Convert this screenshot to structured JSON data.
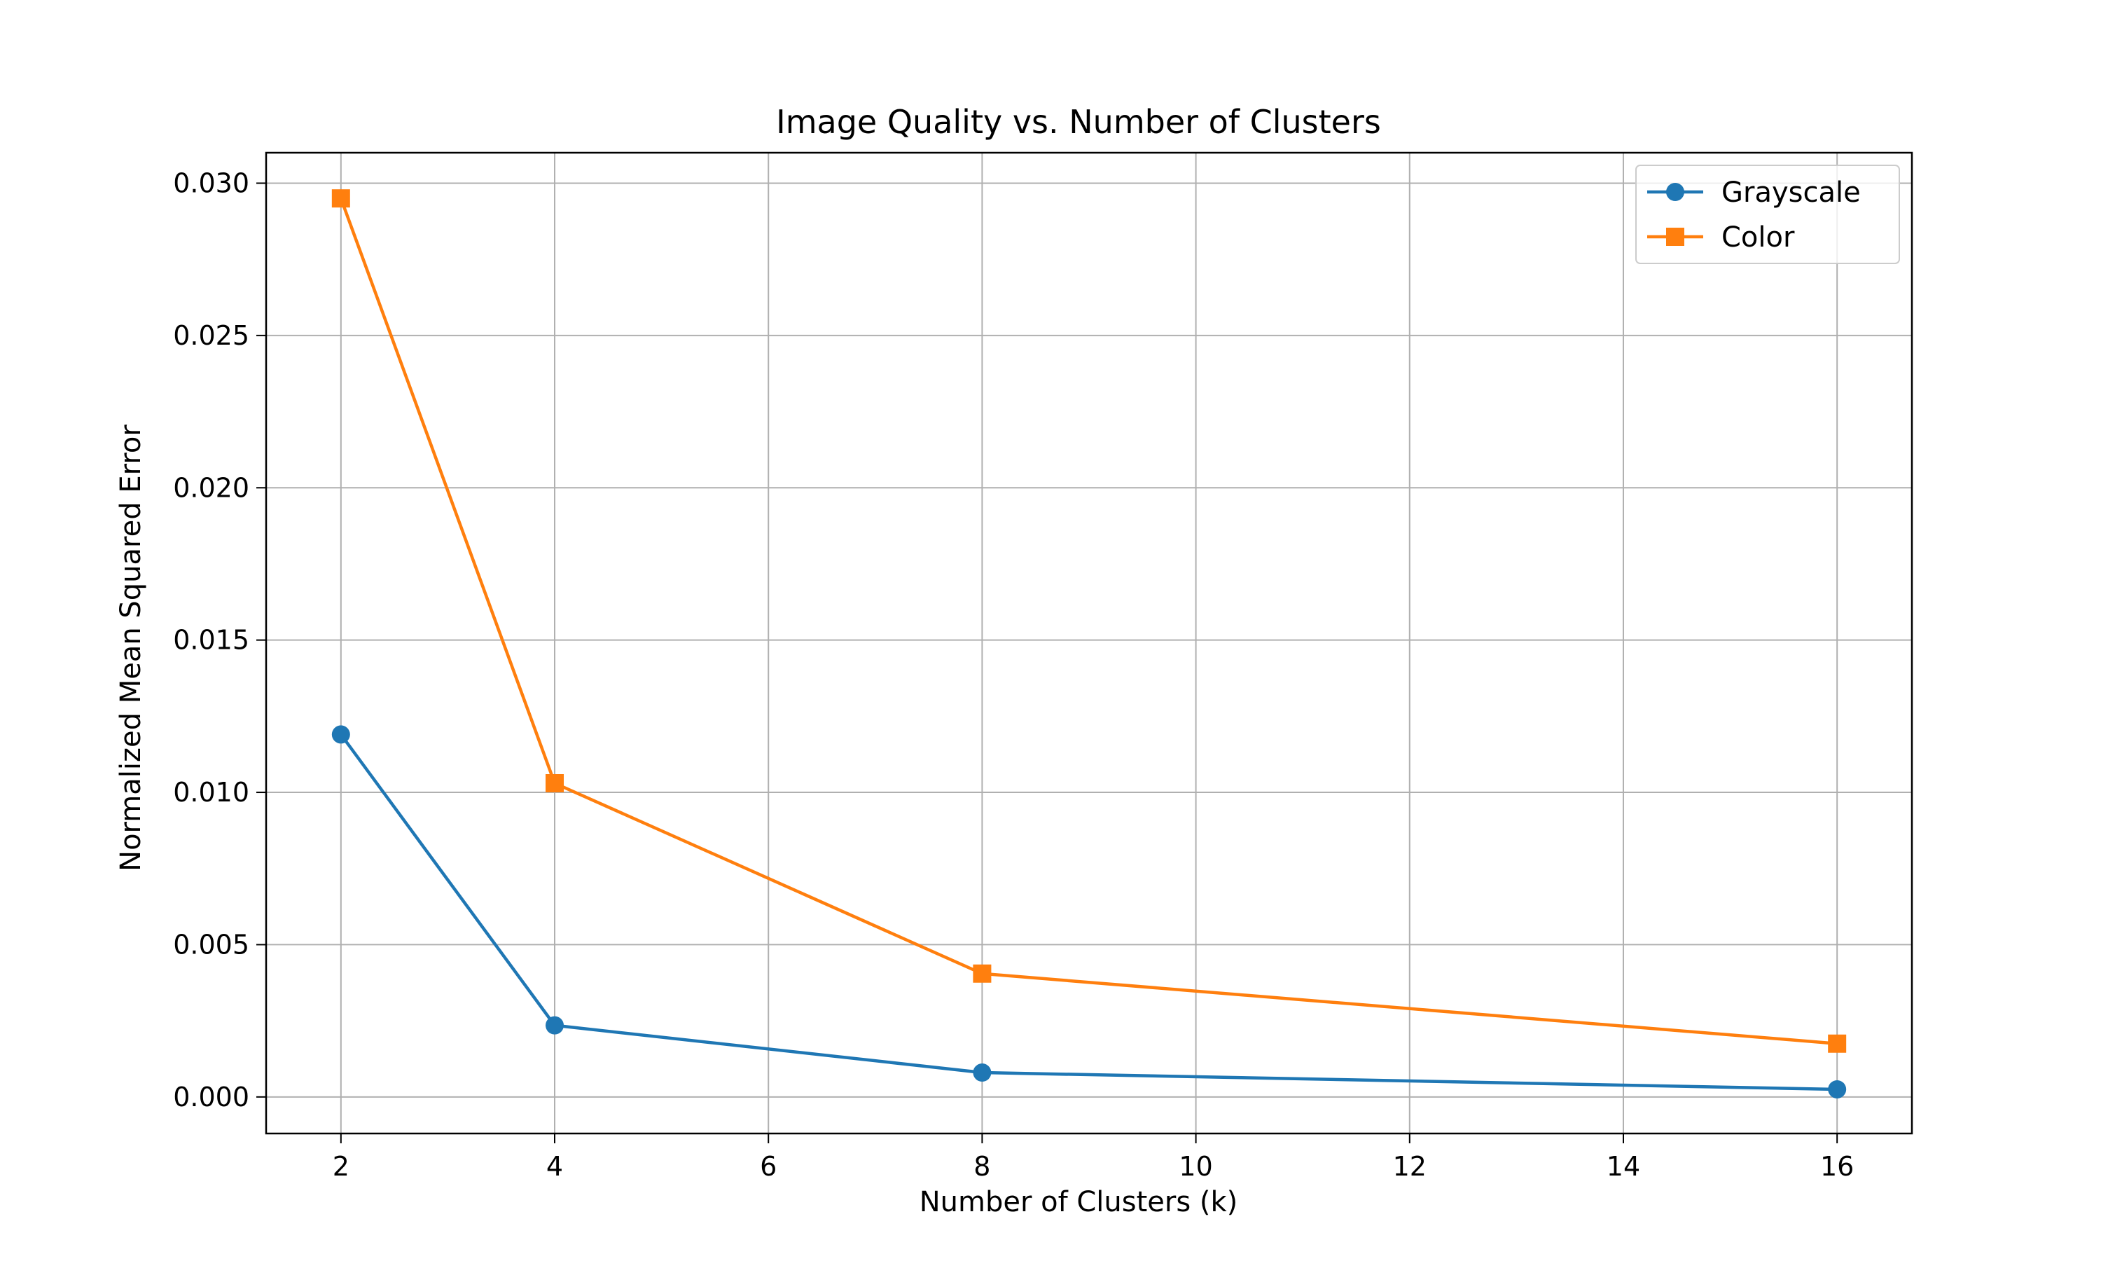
{
  "chart_data": {
    "type": "line",
    "title": "Image Quality vs. Number of Clusters",
    "xlabel": "Number of Clusters (k)",
    "ylabel": "Normalized Mean Squared Error",
    "xlim": [
      1.3,
      16.7
    ],
    "ylim": [
      -0.0012,
      0.031
    ],
    "x_ticks": [
      2,
      4,
      6,
      8,
      10,
      12,
      14,
      16
    ],
    "x_tick_labels": [
      "2",
      "4",
      "6",
      "8",
      "10",
      "12",
      "14",
      "16"
    ],
    "y_ticks": [
      0.0,
      0.005,
      0.01,
      0.015,
      0.02,
      0.025,
      0.03
    ],
    "y_tick_labels": [
      "0.000",
      "0.005",
      "0.010",
      "0.015",
      "0.020",
      "0.025",
      "0.030"
    ],
    "grid": true,
    "legend_position": "top-right",
    "x": [
      2,
      4,
      8,
      16
    ],
    "series": [
      {
        "name": "Grayscale",
        "values": [
          0.0119,
          0.00235,
          0.0008,
          0.00025
        ],
        "color": "#1f77b4",
        "marker": "circle"
      },
      {
        "name": "Color",
        "values": [
          0.0295,
          0.0103,
          0.00405,
          0.00175
        ],
        "color": "#ff7f0e",
        "marker": "square"
      }
    ]
  }
}
